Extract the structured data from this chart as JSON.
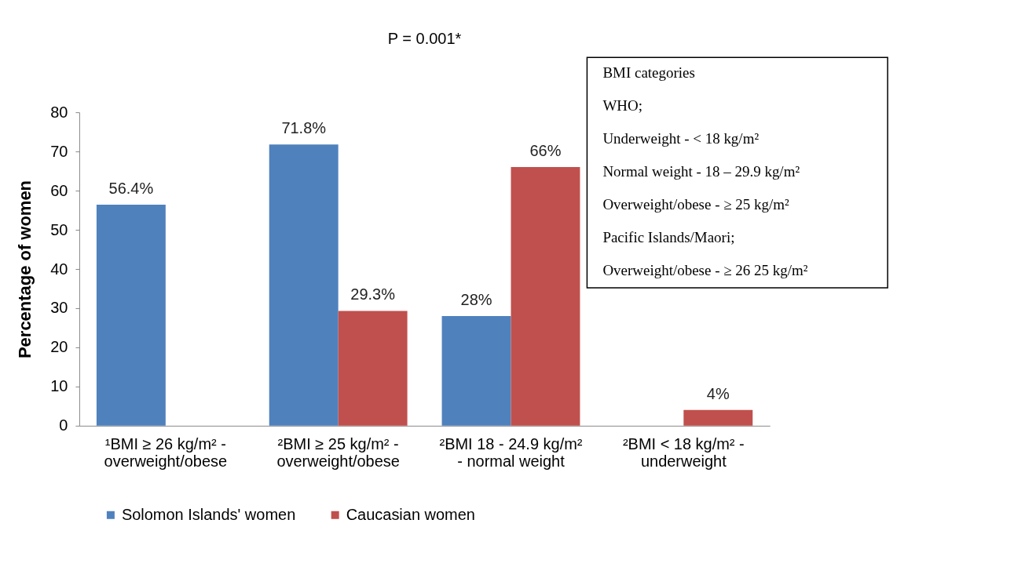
{
  "chart_data": {
    "type": "bar",
    "title": "P = 0.001*",
    "ylabel": "Percentage of women",
    "categories": [
      "¹BMI ≥ 26 kg/m² - overweight/obese",
      "²BMI ≥ 25 kg/m² - overweight/obese",
      "²BMI 18 - 24.9 kg/m² - normal weight",
      "²BMI < 18 kg/m² - underweight"
    ],
    "series": [
      {
        "name": "Solomon Islands' women",
        "color": "#4f81bd",
        "values": [
          56.4,
          71.8,
          28,
          null
        ],
        "value_labels": [
          "56.4%",
          "71.8%",
          "28%",
          null
        ]
      },
      {
        "name": "Caucasian women",
        "color": "#c0504d",
        "values": [
          null,
          29.3,
          66,
          4
        ],
        "value_labels": [
          null,
          "29.3%",
          "66%",
          "4%"
        ]
      }
    ],
    "ylim": [
      0,
      80
    ],
    "yticks": [
      0,
      10,
      20,
      30,
      40,
      50,
      60,
      70,
      80
    ],
    "grid": false,
    "legend": "bottom",
    "annotations": [
      "BMI categories",
      "WHO;",
      "Underweight - < 18 kg/m²",
      "Normal weight - 18 – 29.9 kg/m²",
      "Overweight/obese - ≥ 25 kg/m²",
      "Pacific Islands/Maori;",
      "Overweight/obese - ≥ 26 25 kg/m²"
    ]
  }
}
